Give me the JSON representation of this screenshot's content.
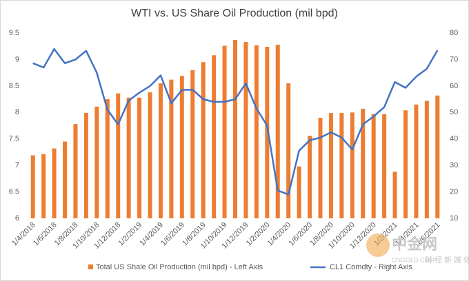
{
  "chart_data": {
    "type": "bar-line",
    "title": "WTI vs. US Share Oil Production (mil bpd)",
    "categories": [
      "1/4/2018",
      null,
      "1/6/2018",
      null,
      "1/8/2018",
      null,
      "1/10/2018",
      null,
      "1/12/2018",
      null,
      "1/2/2019",
      null,
      "1/4/2019",
      null,
      "1/6/2019",
      null,
      "1/8/2019",
      null,
      "1/10/2019",
      null,
      "1/12/2019",
      null,
      "1/2/2020",
      null,
      "1/4/2020",
      null,
      "1/6/2020",
      null,
      "1/8/2020",
      null,
      "1/10/2020",
      null,
      "1/12/2020",
      null,
      "1/2/2021",
      null,
      "1/4/2021",
      null,
      "1/6/2021"
    ],
    "series": [
      {
        "name": "Total US Shale Oil Production (mil bpd) - Left Axis",
        "color": "#ed7d31",
        "kind": "bar",
        "values": [
          7.19,
          7.21,
          7.32,
          7.45,
          7.78,
          7.99,
          8.11,
          8.25,
          8.36,
          8.28,
          8.28,
          8.38,
          8.55,
          8.62,
          8.69,
          8.8,
          8.95,
          9.08,
          9.26,
          9.37,
          9.33,
          9.27,
          9.24,
          9.28,
          8.55,
          6.98,
          7.56,
          7.9,
          7.99,
          7.99,
          8.0,
          8.07,
          7.97,
          7.97,
          6.88,
          8.04,
          8.15,
          8.22,
          8.32
        ]
      },
      {
        "name": "CL1 Comdty - Right Axis",
        "color": "#4472c4",
        "kind": "line",
        "axis": "y2",
        "values": [
          68.6,
          67,
          74,
          68.6,
          70,
          73.3,
          65,
          51,
          45.5,
          54.5,
          57.5,
          60,
          64,
          53.5,
          58.5,
          58.6,
          55,
          54,
          54,
          55,
          61,
          51.5,
          45,
          20.5,
          19,
          35.5,
          39.5,
          40.5,
          42.5,
          40.5,
          36,
          45.5,
          48.5,
          52,
          61.5,
          59.3,
          63.5,
          66.5,
          73.5
        ]
      }
    ],
    "ylim": [
      6,
      9.5
    ],
    "yticks": [
      6,
      6.5,
      7,
      7.5,
      8,
      8.5,
      9,
      9.5
    ],
    "y2lim": [
      10,
      80
    ],
    "y2ticks": [
      10,
      20,
      30,
      40,
      50,
      60,
      70,
      80
    ],
    "grid": false,
    "watermark": {
      "brand": "中金网",
      "site": "CNGOLD.COM",
      "tagline": "财经新媒体"
    }
  }
}
